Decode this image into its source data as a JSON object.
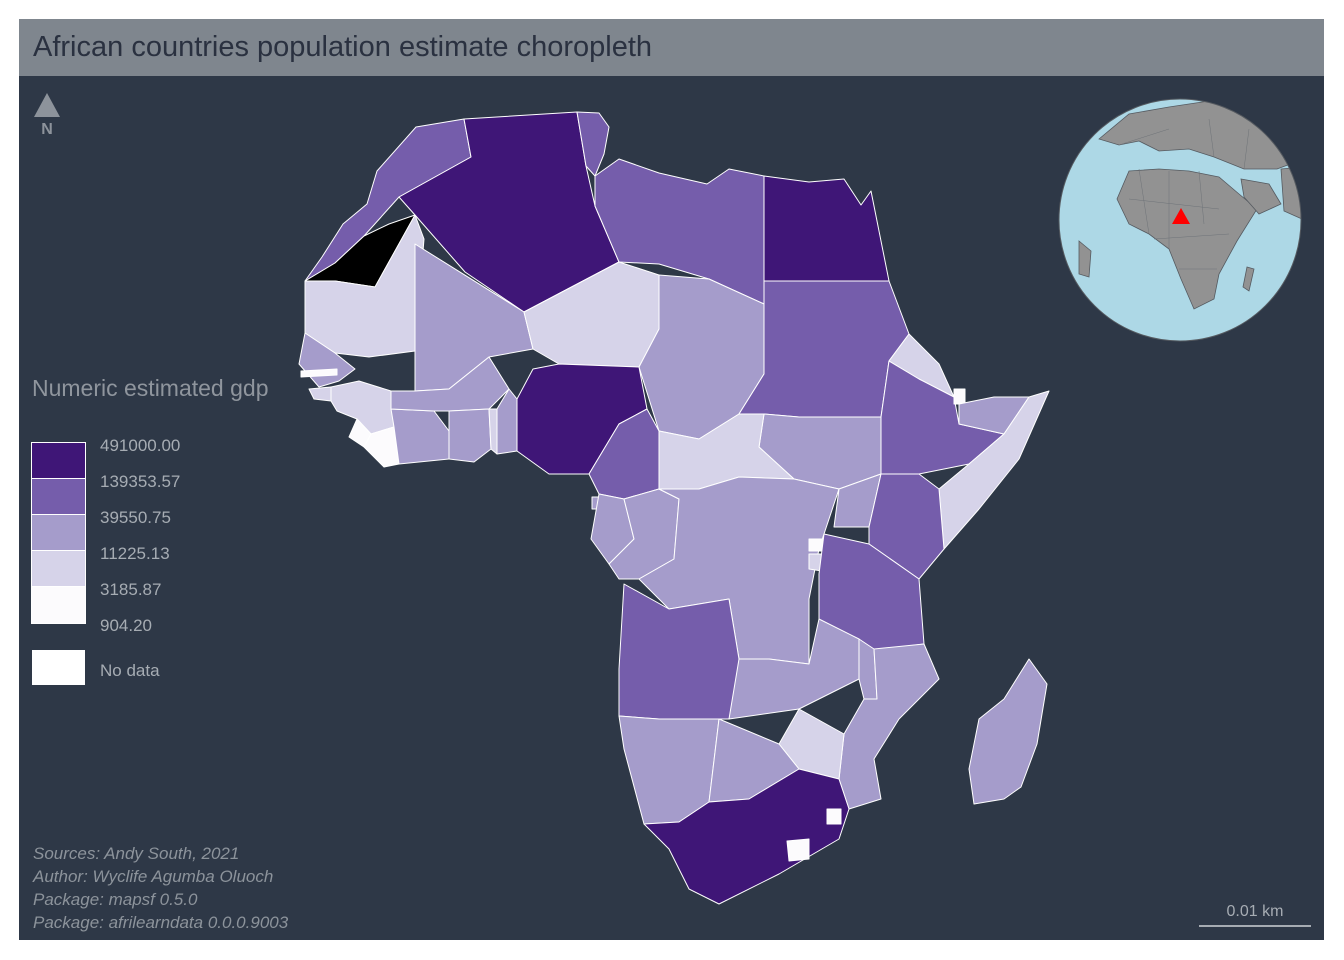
{
  "title": "African countries population estimate choropleth",
  "north_arrow": {
    "label": "N",
    "icon": "north-arrow-icon"
  },
  "legend": {
    "title": "Numeric estimated gdp",
    "breaks": [
      "491000.00",
      "139353.57",
      "39550.75",
      "11225.13",
      "3185.87",
      "904.20"
    ],
    "classes": [
      {
        "color": "#3f1677"
      },
      {
        "color": "#755dab"
      },
      {
        "color": "#a59ccb"
      },
      {
        "color": "#d6d3e9"
      },
      {
        "color": "#fcfbfd"
      }
    ],
    "no_data": {
      "label": "No data",
      "color": "#ffffff"
    }
  },
  "credits": [
    "Sources: Andy South, 2021",
    "Author: Wyclife Agumba Oluoch",
    "Package: mapsf 0.5.0",
    "Package: afrilearndata 0.0.0.9003"
  ],
  "scale_bar": {
    "label": "0.01 km"
  },
  "inset": {
    "ocean_color": "#add8e6",
    "land_color": "#929292",
    "marker_color": "#ff0000"
  },
  "colors": {
    "background": "#2e3847",
    "title_bar": "#7f868e"
  }
}
